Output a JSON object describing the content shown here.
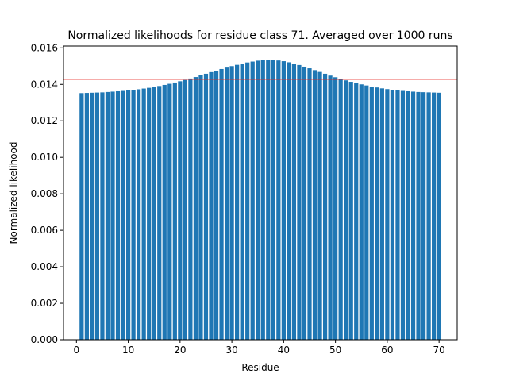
{
  "chart_data": {
    "type": "bar",
    "title": "Normalized likelihoods for residue class 71. Averaged over 1000 runs",
    "xlabel": "Residue",
    "ylabel": "Normalized likelihood",
    "xlim": [
      -2.5,
      73.5
    ],
    "ylim": [
      0,
      0.0161
    ],
    "x_ticks": [
      0,
      10,
      20,
      30,
      40,
      50,
      60,
      70
    ],
    "x_tick_labels": [
      "0",
      "10",
      "20",
      "30",
      "40",
      "50",
      "60",
      "70"
    ],
    "y_ticks": [
      0,
      0.002,
      0.004,
      0.006,
      0.008,
      0.01,
      0.012,
      0.014,
      0.016
    ],
    "y_tick_labels": [
      "0.000",
      "0.002",
      "0.004",
      "0.006",
      "0.008",
      "0.010",
      "0.012",
      "0.014",
      "0.016"
    ],
    "bar_color": "#1f77b4",
    "reference_line": {
      "y": 0.01428,
      "color": "#e8231c"
    },
    "grid": false,
    "x": [
      1,
      2,
      3,
      4,
      5,
      6,
      7,
      8,
      9,
      10,
      11,
      12,
      13,
      14,
      15,
      16,
      17,
      18,
      19,
      20,
      21,
      22,
      23,
      24,
      25,
      26,
      27,
      28,
      29,
      30,
      31,
      32,
      33,
      34,
      35,
      36,
      37,
      38,
      39,
      40,
      41,
      42,
      43,
      44,
      45,
      46,
      47,
      48,
      49,
      50,
      51,
      52,
      53,
      54,
      55,
      56,
      57,
      58,
      59,
      60,
      61,
      62,
      63,
      64,
      65,
      66,
      67,
      68,
      69,
      70
    ],
    "values": [
      0.01352,
      0.01353,
      0.01354,
      0.01355,
      0.01356,
      0.01358,
      0.0136,
      0.01362,
      0.01364,
      0.01367,
      0.0137,
      0.01373,
      0.01377,
      0.01381,
      0.01386,
      0.01391,
      0.01397,
      0.01403,
      0.0141,
      0.01417,
      0.01424,
      0.01432,
      0.0144,
      0.01449,
      0.01458,
      0.01467,
      0.01475,
      0.01484,
      0.01492,
      0.015,
      0.01507,
      0.01514,
      0.0152,
      0.01525,
      0.0153,
      0.01533,
      0.01535,
      0.01534,
      0.01531,
      0.01527,
      0.01521,
      0.01514,
      0.01506,
      0.01497,
      0.01488,
      0.01478,
      0.01468,
      0.01458,
      0.01448,
      0.01439,
      0.0143,
      0.01422,
      0.01414,
      0.01407,
      0.014,
      0.01394,
      0.01388,
      0.01383,
      0.01378,
      0.01374,
      0.0137,
      0.01367,
      0.01364,
      0.01362,
      0.0136,
      0.01358,
      0.01357,
      0.01356,
      0.01355,
      0.01354
    ]
  }
}
